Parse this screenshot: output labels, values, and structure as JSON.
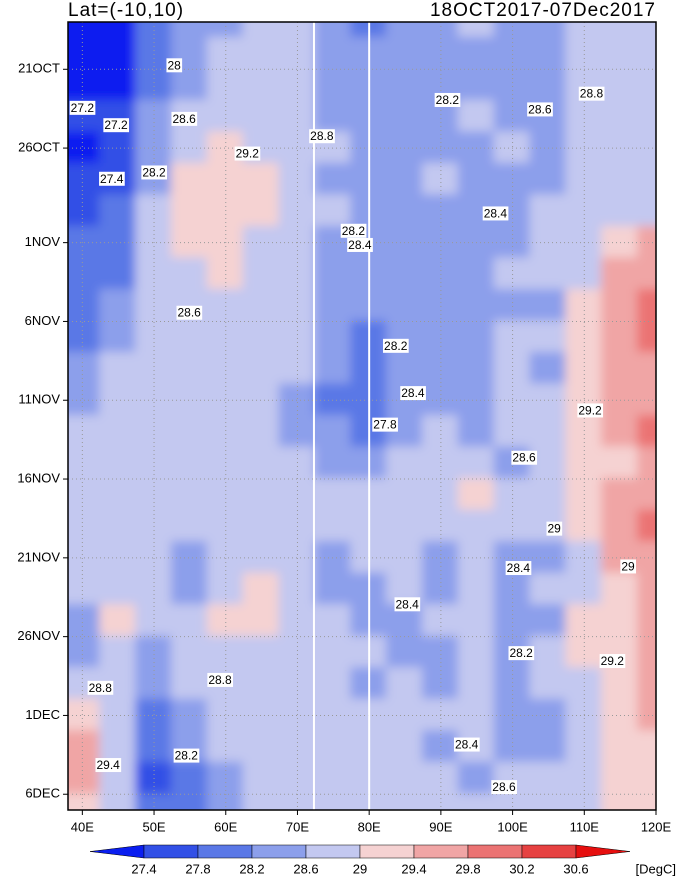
{
  "chart_data": {
    "type": "heatmap",
    "title_left": "Lat=(-10,10)",
    "title_right": "18OCT2017-07Dec2017",
    "x": [
      40,
      45,
      50,
      55,
      60,
      65,
      70,
      75,
      80,
      85,
      90,
      95,
      100,
      105,
      110,
      115,
      120
    ],
    "y": [
      0,
      2,
      4,
      6,
      8,
      10,
      12,
      14,
      16,
      18,
      20,
      22,
      24,
      26,
      28,
      30,
      32,
      34,
      36,
      38,
      40,
      42,
      44,
      46,
      48,
      50
    ],
    "values": [
      [
        27.2,
        27.0,
        27.8,
        28.2,
        28.4,
        28.6,
        28.6,
        28.2,
        28.0,
        28.2,
        28.4,
        28.6,
        28.4,
        28.4,
        28.6,
        28.8,
        28.8
      ],
      [
        27.2,
        27.0,
        27.8,
        28.4,
        28.6,
        28.6,
        28.6,
        28.2,
        28.2,
        28.4,
        28.4,
        28.4,
        28.2,
        28.4,
        28.6,
        28.8,
        28.8
      ],
      [
        27.2,
        27.2,
        28.0,
        28.4,
        28.6,
        28.8,
        28.6,
        28.4,
        28.4,
        28.4,
        28.4,
        28.4,
        28.2,
        28.4,
        28.6,
        28.8,
        28.8
      ],
      [
        27.4,
        27.4,
        28.2,
        28.6,
        28.8,
        28.8,
        28.8,
        28.4,
        28.4,
        28.2,
        28.4,
        28.6,
        28.4,
        28.4,
        28.6,
        28.8,
        28.8
      ],
      [
        27.2,
        27.6,
        28.2,
        28.8,
        29.1,
        28.9,
        28.8,
        28.6,
        28.4,
        28.2,
        28.4,
        28.4,
        28.6,
        28.4,
        28.6,
        28.8,
        28.8
      ],
      [
        27.4,
        27.6,
        28.4,
        29.0,
        29.2,
        29.0,
        28.8,
        28.4,
        28.4,
        28.4,
        28.6,
        28.4,
        28.4,
        28.4,
        28.6,
        28.8,
        28.8
      ],
      [
        27.6,
        27.8,
        28.6,
        29.1,
        29.2,
        29.0,
        28.9,
        28.6,
        28.2,
        28.4,
        28.4,
        28.4,
        28.4,
        28.6,
        28.6,
        28.8,
        28.9
      ],
      [
        27.8,
        27.8,
        28.6,
        29.0,
        29.2,
        28.9,
        28.8,
        28.4,
        28.2,
        28.4,
        28.4,
        28.2,
        28.4,
        28.6,
        28.8,
        29.0,
        29.4
      ],
      [
        27.8,
        28.0,
        28.6,
        28.9,
        29.0,
        28.8,
        28.6,
        28.4,
        28.4,
        28.4,
        28.4,
        28.4,
        28.6,
        28.6,
        28.8,
        29.4,
        29.6
      ],
      [
        27.8,
        28.2,
        28.6,
        28.8,
        28.8,
        28.6,
        28.6,
        28.4,
        28.2,
        28.4,
        28.4,
        28.4,
        28.4,
        28.4,
        29.0,
        29.4,
        29.8
      ],
      [
        28.0,
        28.4,
        28.8,
        28.9,
        28.8,
        28.6,
        28.6,
        28.2,
        28.0,
        28.2,
        28.4,
        28.4,
        28.6,
        28.6,
        29.0,
        29.6,
        29.8
      ],
      [
        28.2,
        28.6,
        28.8,
        28.6,
        28.6,
        28.8,
        28.6,
        28.2,
        27.8,
        28.2,
        28.4,
        28.4,
        28.6,
        28.4,
        29.0,
        29.4,
        29.6
      ],
      [
        28.4,
        28.6,
        28.6,
        28.6,
        28.8,
        28.6,
        28.4,
        28.0,
        27.8,
        28.2,
        28.4,
        28.4,
        28.6,
        28.6,
        29.2,
        29.4,
        29.6
      ],
      [
        28.6,
        28.8,
        28.6,
        28.6,
        28.6,
        28.6,
        28.4,
        28.2,
        28.0,
        28.4,
        28.6,
        28.4,
        28.6,
        28.6,
        29.2,
        29.4,
        29.8
      ],
      [
        28.6,
        28.8,
        28.8,
        28.6,
        28.6,
        28.8,
        28.6,
        28.4,
        28.4,
        28.6,
        28.6,
        28.8,
        28.4,
        28.6,
        29.2,
        29.2,
        29.6
      ],
      [
        28.8,
        28.8,
        28.6,
        28.6,
        28.8,
        28.8,
        28.6,
        28.6,
        28.6,
        28.6,
        28.6,
        29.0,
        28.6,
        28.6,
        29.2,
        29.4,
        29.6
      ],
      [
        28.6,
        28.8,
        28.6,
        28.6,
        28.8,
        28.8,
        28.6,
        28.6,
        28.6,
        28.8,
        28.6,
        28.8,
        28.6,
        28.6,
        29.0,
        29.4,
        29.8
      ],
      [
        28.6,
        28.6,
        28.6,
        28.4,
        28.6,
        28.6,
        28.8,
        28.4,
        28.6,
        28.6,
        28.4,
        28.6,
        28.4,
        28.4,
        28.8,
        29.4,
        29.6
      ],
      [
        28.6,
        28.6,
        28.6,
        28.4,
        28.8,
        29.0,
        28.8,
        28.4,
        28.4,
        28.6,
        28.4,
        28.6,
        28.4,
        28.6,
        28.8,
        29.2,
        29.6
      ],
      [
        28.4,
        29.0,
        28.6,
        28.6,
        29.0,
        29.0,
        28.8,
        28.6,
        28.4,
        28.4,
        28.6,
        28.6,
        28.4,
        28.4,
        29.0,
        29.2,
        29.4
      ],
      [
        28.4,
        28.8,
        28.4,
        28.6,
        28.8,
        28.8,
        28.6,
        28.6,
        28.6,
        28.4,
        28.4,
        28.8,
        28.4,
        28.6,
        29.0,
        29.2,
        29.4
      ],
      [
        28.6,
        28.6,
        28.2,
        28.6,
        28.6,
        28.8,
        28.6,
        28.6,
        28.4,
        28.6,
        28.4,
        28.6,
        28.4,
        28.6,
        28.8,
        29.2,
        29.4
      ],
      [
        29.2,
        28.8,
        28.0,
        28.4,
        28.6,
        28.8,
        28.8,
        28.6,
        28.6,
        28.6,
        28.6,
        28.6,
        28.4,
        28.4,
        28.8,
        29.0,
        29.4
      ],
      [
        29.6,
        28.8,
        27.8,
        28.2,
        28.6,
        28.6,
        28.6,
        28.8,
        28.6,
        28.6,
        28.4,
        28.6,
        28.4,
        28.4,
        28.6,
        29.0,
        29.2
      ],
      [
        29.4,
        28.6,
        27.6,
        28.0,
        28.4,
        28.6,
        28.8,
        28.8,
        28.6,
        28.8,
        28.6,
        28.4,
        28.6,
        28.6,
        28.6,
        29.0,
        29.2
      ],
      [
        29.2,
        28.8,
        27.8,
        28.0,
        28.4,
        28.6,
        28.8,
        28.8,
        28.6,
        28.8,
        28.6,
        28.6,
        28.6,
        28.6,
        28.6,
        29.0,
        29.2
      ]
    ],
    "xlim": [
      38,
      120
    ],
    "ylim": [
      0,
      50
    ],
    "xticks": [
      {
        "value": 40,
        "label": "40E"
      },
      {
        "value": 50,
        "label": "50E"
      },
      {
        "value": 60,
        "label": "60E"
      },
      {
        "value": 70,
        "label": "70E"
      },
      {
        "value": 80,
        "label": "80E"
      },
      {
        "value": 90,
        "label": "90E"
      },
      {
        "value": 100,
        "label": "100E"
      },
      {
        "value": 110,
        "label": "110E"
      },
      {
        "value": 120,
        "label": "120E"
      }
    ],
    "yticks": [
      {
        "value": 3,
        "label": "21OCT"
      },
      {
        "value": 8,
        "label": "26OCT"
      },
      {
        "value": 14,
        "label": "1NOV"
      },
      {
        "value": 19,
        "label": "6NOV"
      },
      {
        "value": 24,
        "label": "11NOV"
      },
      {
        "value": 29,
        "label": "16NOV"
      },
      {
        "value": 34,
        "label": "21NOV"
      },
      {
        "value": 39,
        "label": "26NOV"
      },
      {
        "value": 44,
        "label": "1DEC"
      },
      {
        "value": 49,
        "label": "6DEC"
      }
    ],
    "grid": true,
    "vlines": [
      72.3,
      80
    ],
    "levels": [
      27.4,
      27.8,
      28.2,
      28.6,
      29,
      29.4,
      29.8,
      30.2,
      30.6
    ],
    "colors": [
      "#0a1ef0",
      "#3250e6",
      "#5a78e6",
      "#8c9feb",
      "#c3c8f0",
      "#f5d2d2",
      "#f0a5a5",
      "#eb7373",
      "#e64141",
      "#e60f0f"
    ],
    "colorbar_unit": "[DegC]",
    "annotations": [
      {
        "x": 52.8,
        "y": 2.8,
        "value": 28
      },
      {
        "x": 40,
        "y": 5.5,
        "value": 27.2
      },
      {
        "x": 44.7,
        "y": 6.6,
        "value": 27.2
      },
      {
        "x": 54.2,
        "y": 6.2,
        "value": 28.6
      },
      {
        "x": 63,
        "y": 8.4,
        "value": 29.2
      },
      {
        "x": 73.4,
        "y": 7.3,
        "value": 28.8
      },
      {
        "x": 90.9,
        "y": 5,
        "value": 28.2
      },
      {
        "x": 103.8,
        "y": 5.6,
        "value": 28.6
      },
      {
        "x": 111,
        "y": 4.6,
        "value": 28.8
      },
      {
        "x": 44.1,
        "y": 10,
        "value": 27.4
      },
      {
        "x": 50,
        "y": 9.6,
        "value": 28.2
      },
      {
        "x": 97.6,
        "y": 12.2,
        "value": 28.4
      },
      {
        "x": 77.8,
        "y": 13.3,
        "value": 28.2
      },
      {
        "x": 78.7,
        "y": 14.2,
        "value": 28.4
      },
      {
        "x": 54.9,
        "y": 18.5,
        "value": 28.6
      },
      {
        "x": 83.7,
        "y": 20.6,
        "value": 28.2
      },
      {
        "x": 82.2,
        "y": 25.6,
        "value": 27.8
      },
      {
        "x": 86.1,
        "y": 23.6,
        "value": 28.4
      },
      {
        "x": 110.8,
        "y": 24.7,
        "value": 29.2
      },
      {
        "x": 101.6,
        "y": 27.7,
        "value": 28.6
      },
      {
        "x": 105.8,
        "y": 32.2,
        "value": 29
      },
      {
        "x": 100.8,
        "y": 34.7,
        "value": 28.4
      },
      {
        "x": 85.3,
        "y": 37,
        "value": 28.4
      },
      {
        "x": 101.2,
        "y": 40.1,
        "value": 28.2
      },
      {
        "x": 113.9,
        "y": 40.6,
        "value": 29.2
      },
      {
        "x": 59.2,
        "y": 41.8,
        "value": 28.8
      },
      {
        "x": 42.5,
        "y": 42.3,
        "value": 28.8
      },
      {
        "x": 43.6,
        "y": 47.2,
        "value": 29.4
      },
      {
        "x": 54.5,
        "y": 46.6,
        "value": 28.2
      },
      {
        "x": 93.6,
        "y": 45.9,
        "value": 28.4
      },
      {
        "x": 98.8,
        "y": 48.6,
        "value": 28.6
      },
      {
        "x": 116.1,
        "y": 34.6,
        "value": 29
      }
    ]
  }
}
